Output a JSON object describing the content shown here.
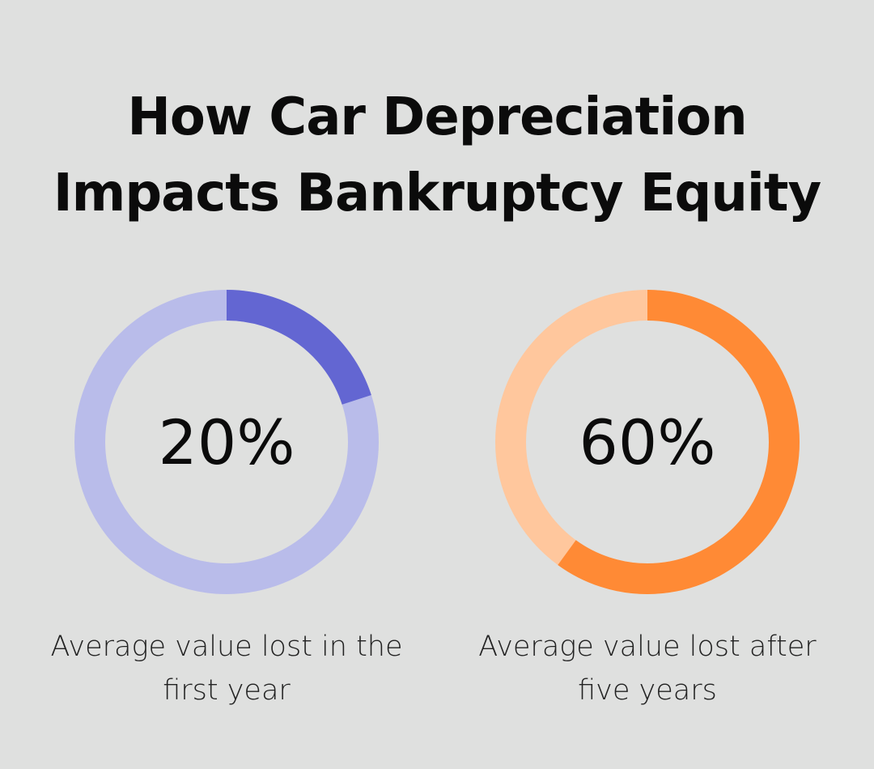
{
  "chart_data": {
    "type": "pie",
    "title": "How Car Depreciation Impacts Bankruptcy Equity",
    "title_lines": [
      "How Car Depreciation",
      "Impacts Bankruptcy Equity"
    ],
    "charts": [
      {
        "value": 20,
        "value_label": "20%",
        "caption": "Average value lost in the first year",
        "caption_lines": [
          "Average value lost in the",
          "first year"
        ],
        "fill_color": "#6366d2",
        "track_color": "#b9bcea"
      },
      {
        "value": 60,
        "value_label": "60%",
        "caption": "Average value lost after five years",
        "caption_lines": [
          "Average value lost after",
          "five years"
        ],
        "fill_color": "#ff8a35",
        "track_color": "#ffc79d"
      }
    ]
  }
}
